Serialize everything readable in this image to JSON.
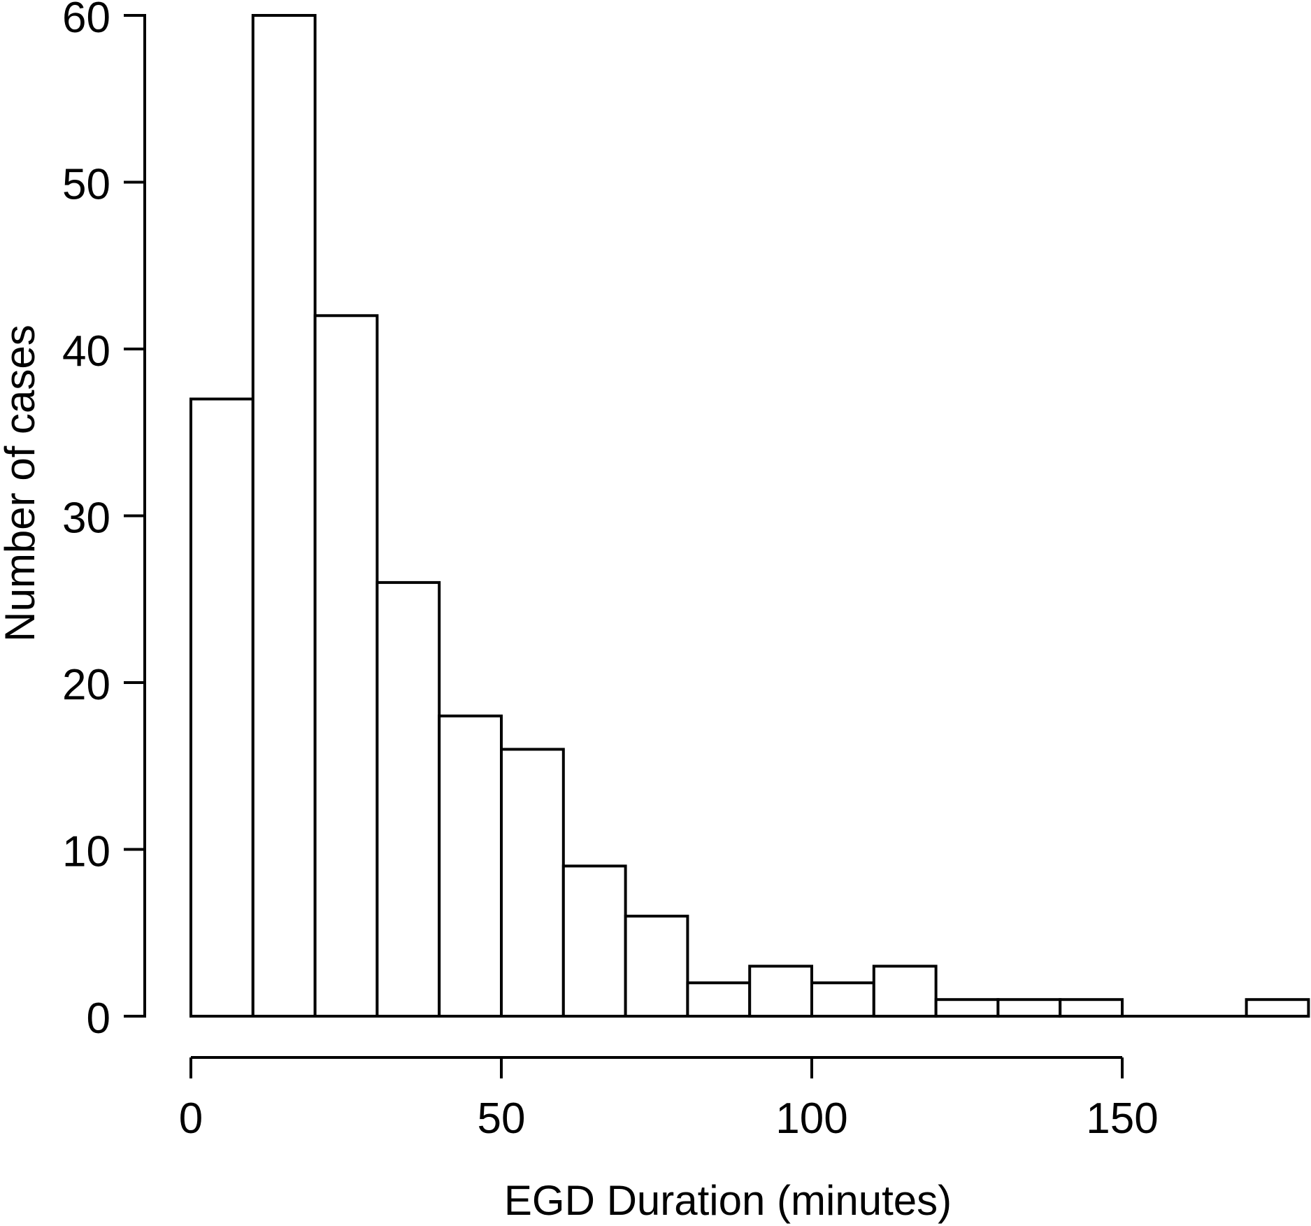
{
  "figure": {
    "background_color": "#ffffff",
    "stroke_color": "#000000",
    "bar_fill_color": "#ffffff"
  },
  "chart_data": {
    "type": "bar",
    "subtype": "histogram",
    "title": "",
    "xlabel": "EGD Duration (minutes)",
    "ylabel": "Number of cases",
    "bin_width": 10,
    "bin_edges": [
      0,
      10,
      20,
      30,
      40,
      50,
      60,
      70,
      80,
      90,
      100,
      110,
      120,
      130,
      140,
      150,
      160,
      170,
      180
    ],
    "counts": [
      37,
      60,
      42,
      26,
      18,
      16,
      9,
      6,
      2,
      3,
      2,
      3,
      1,
      1,
      1,
      0,
      0,
      1
    ],
    "x_ticks": [
      0,
      50,
      100,
      150
    ],
    "y_ticks": [
      0,
      10,
      20,
      30,
      40,
      50,
      60
    ],
    "xlim": [
      0,
      180
    ],
    "ylim": [
      0,
      60
    ],
    "grid": false,
    "legend": null
  }
}
